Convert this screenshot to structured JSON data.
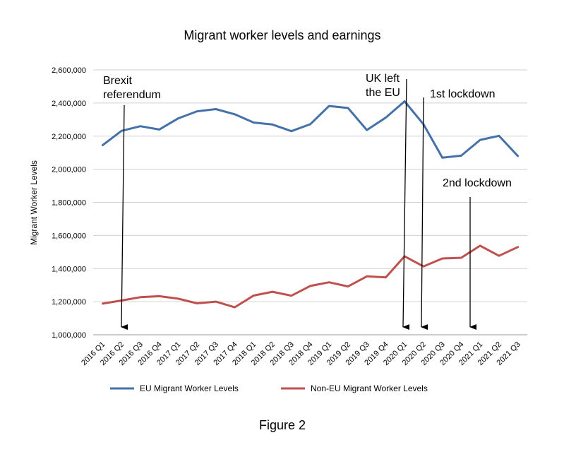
{
  "figure_caption": "Figure 2",
  "chart_data": {
    "type": "line",
    "title": "Migrant worker levels and earnings",
    "xlabel": "",
    "ylabel": "Migrant Worker Levels",
    "ylim": [
      1000000,
      2600000
    ],
    "yticks": [
      "1,000,000",
      "1,200,000",
      "1,400,000",
      "1,600,000",
      "1,800,000",
      "2,000,000",
      "2,200,000",
      "2,400,000",
      "2,600,000"
    ],
    "categories": [
      "2016 Q1",
      "2016 Q2",
      "2016 Q3",
      "2016 Q4",
      "2017 Q1",
      "2017 Q2",
      "2017 Q3",
      "2017 Q4",
      "2018 Q1",
      "2018 Q2",
      "2018 Q3",
      "2018 Q4",
      "2019 Q1",
      "2019 Q2",
      "2019 Q3",
      "2019 Q4",
      "2020 Q1",
      "2020 Q2",
      "2020 Q3",
      "2020 Q4",
      "2021 Q1",
      "2021 Q2",
      "2021 Q3"
    ],
    "series": [
      {
        "name": "EU Migrant Worker Levels",
        "color": "#4472a8",
        "values": [
          2145000,
          2232000,
          2260000,
          2240000,
          2307000,
          2350000,
          2363000,
          2332000,
          2282000,
          2270000,
          2230000,
          2272000,
          2382000,
          2370000,
          2237000,
          2312000,
          2410000,
          2272000,
          2070000,
          2082000,
          2177000,
          2202000,
          2080000
        ]
      },
      {
        "name": "Non-EU Migrant Worker Levels",
        "color": "#c0504d",
        "values": [
          1188000,
          1207000,
          1227000,
          1233000,
          1218000,
          1190000,
          1200000,
          1166000,
          1237000,
          1260000,
          1236000,
          1295000,
          1317000,
          1292000,
          1353000,
          1347000,
          1474000,
          1413000,
          1461000,
          1465000,
          1538000,
          1477000,
          1530000
        ]
      }
    ],
    "grid": true,
    "legend_position": "bottom",
    "annotations": [
      {
        "lines": [
          "Brexit",
          "referendum"
        ],
        "category": "2016 Q2"
      },
      {
        "lines": [
          "UK left",
          "the EU"
        ],
        "category": "2020 Q1"
      },
      {
        "lines": [
          "1st lockdown"
        ],
        "category": "2020 Q2"
      },
      {
        "lines": [
          "2nd lockdown"
        ],
        "category": "2021 Q1"
      }
    ]
  }
}
